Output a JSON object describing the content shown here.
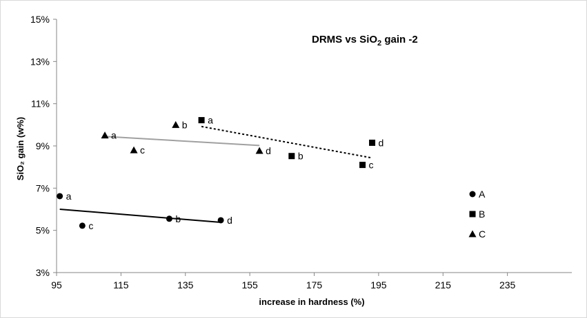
{
  "chart_data": {
    "type": "scatter",
    "title_main": "DRMS vs SiO",
    "title_sub": "2",
    "title_tail": " gain -2",
    "xlabel": "increase in hardness (%)",
    "ylabel": "SiO₂ gain (w%)",
    "xlim": [
      95,
      255
    ],
    "ylim": [
      3,
      15
    ],
    "x_ticks": [
      95,
      115,
      135,
      155,
      175,
      195,
      215,
      235
    ],
    "y_ticks": [
      3,
      5,
      7,
      9,
      11,
      13,
      15
    ],
    "y_tick_suffix": "%",
    "grid": false,
    "legend_position": "right",
    "series": [
      {
        "name": "A",
        "marker": "circle",
        "color": "#000000",
        "points": [
          {
            "x": 96,
            "y": 6.62,
            "label": "a"
          },
          {
            "x": 130,
            "y": 5.55,
            "label": "b"
          },
          {
            "x": 103,
            "y": 5.22,
            "label": "c"
          },
          {
            "x": 146,
            "y": 5.48,
            "label": "d"
          }
        ],
        "trendline": {
          "x": [
            96,
            146
          ],
          "y": [
            6.0,
            5.38
          ],
          "color": "#000000",
          "dash": "solid"
        }
      },
      {
        "name": "B",
        "marker": "square",
        "color": "#000000",
        "points": [
          {
            "x": 140,
            "y": 10.22,
            "label": "a"
          },
          {
            "x": 168,
            "y": 8.52,
            "label": "b"
          },
          {
            "x": 190,
            "y": 8.1,
            "label": "c"
          },
          {
            "x": 193,
            "y": 9.15,
            "label": "d"
          }
        ],
        "trendline": {
          "x": [
            140,
            193
          ],
          "y": [
            9.92,
            8.43
          ],
          "color": "#000000",
          "dash": "dotted"
        }
      },
      {
        "name": "C",
        "marker": "triangle",
        "color": "#000000",
        "points": [
          {
            "x": 110,
            "y": 9.5,
            "label": "a"
          },
          {
            "x": 132,
            "y": 10.0,
            "label": "b"
          },
          {
            "x": 119,
            "y": 8.8,
            "label": "c"
          },
          {
            "x": 158,
            "y": 8.77,
            "label": "d"
          }
        ],
        "trendline": {
          "x": [
            110,
            158
          ],
          "y": [
            9.45,
            9.02
          ],
          "color": "#a0a0a0",
          "dash": "solid"
        }
      }
    ]
  }
}
